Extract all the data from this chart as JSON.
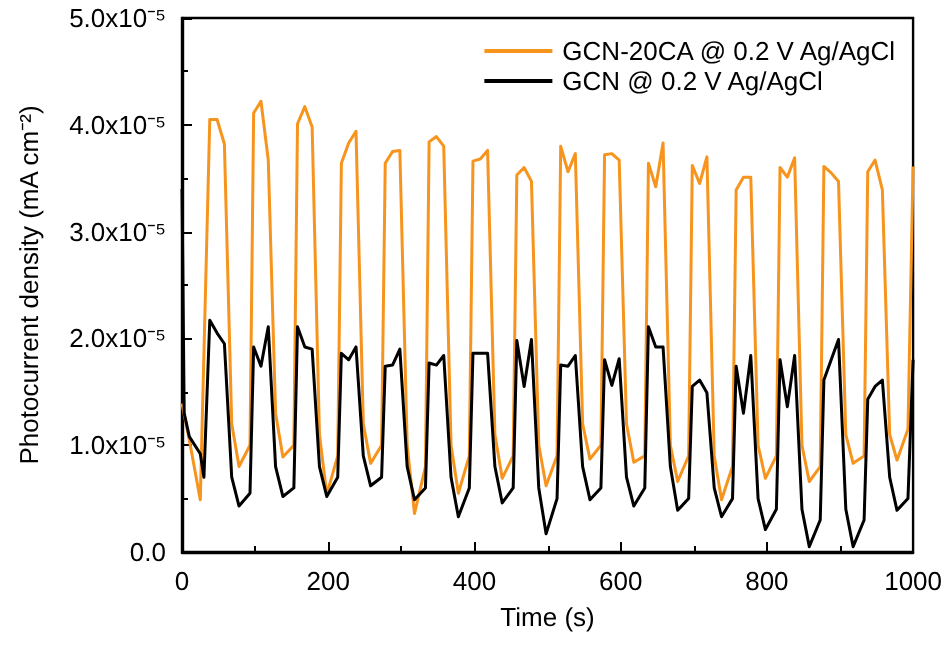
{
  "chart_data": {
    "type": "line",
    "xlabel": "Time (s)",
    "ylabel": "Photocurrent density (mA cm⁻²)",
    "xlim": [
      0,
      1000
    ],
    "xticks": [
      0,
      200,
      400,
      600,
      800,
      1000
    ],
    "ylim": [
      0,
      5e-05
    ],
    "yticks": [
      {
        "value": 0,
        "label": "0.0"
      },
      {
        "value": 1e-05,
        "label": "1.0x10⁻⁵"
      },
      {
        "value": 2e-05,
        "label": "2.0x10⁻⁵"
      },
      {
        "value": 3e-05,
        "label": "3.0x10⁻⁵"
      },
      {
        "value": 4e-05,
        "label": "4.0x10⁻⁵"
      },
      {
        "value": 5e-05,
        "label": "5.0x10⁻⁵"
      }
    ],
    "grid": false,
    "legend": "top right",
    "marker": "none",
    "line_style": "solid",
    "series": [
      {
        "name": "GCN-20CA @ 0.2 V Ag/AgCl",
        "color": "#f7941d",
        "x": [
          0,
          10,
          25,
          38,
          48,
          58,
          68,
          78,
          93,
          98,
          108,
          118,
          128,
          138,
          153,
          158,
          168,
          178,
          188,
          198,
          213,
          218,
          228,
          238,
          248,
          258,
          273,
          278,
          288,
          298,
          308,
          318,
          333,
          338,
          348,
          358,
          368,
          378,
          393,
          398,
          408,
          418,
          428,
          438,
          453,
          458,
          468,
          478,
          488,
          498,
          513,
          518,
          528,
          538,
          548,
          558,
          573,
          578,
          588,
          598,
          608,
          618,
          633,
          638,
          648,
          658,
          668,
          678,
          693,
          698,
          708,
          718,
          728,
          738,
          753,
          758,
          768,
          778,
          788,
          798,
          813,
          818,
          828,
          838,
          848,
          858,
          873,
          878,
          888,
          898,
          908,
          918,
          933,
          938,
          948,
          958,
          968,
          978,
          993,
          1000
        ],
        "values": [
          1.39e-05,
          1.05e-05,
          4.9e-06,
          4.05e-05,
          4.05e-05,
          3.82e-05,
          1.2e-05,
          8e-06,
          1e-05,
          4.11e-05,
          4.22e-05,
          3.67e-05,
          1.3e-05,
          8.9e-06,
          1e-05,
          4.01e-05,
          4.17e-05,
          3.98e-05,
          1.1e-05,
          5.4e-06,
          9e-06,
          3.64e-05,
          3.83e-05,
          3.94e-05,
          1.2e-05,
          8.3e-06,
          1e-05,
          3.64e-05,
          3.75e-05,
          3.76e-05,
          1e-05,
          3.6e-06,
          8e-06,
          3.84e-05,
          3.89e-05,
          3.8e-05,
          1e-05,
          5.5e-06,
          9e-06,
          3.66e-05,
          3.68e-05,
          3.76e-05,
          1.1e-05,
          6.9e-06,
          9e-06,
          3.53e-05,
          3.6e-05,
          3.47e-05,
          1e-05,
          6.2e-06,
          9e-06,
          3.8e-05,
          3.56e-05,
          3.73e-05,
          1.2e-05,
          8.7e-06,
          1e-05,
          3.72e-05,
          3.73e-05,
          3.67e-05,
          1.2e-05,
          8.4e-06,
          9e-06,
          3.64e-05,
          3.42e-05,
          3.83e-05,
          1e-05,
          6.6e-06,
          9e-06,
          3.62e-05,
          3.45e-05,
          3.7e-05,
          9e-06,
          4.9e-06,
          8e-06,
          3.39e-05,
          3.51e-05,
          3.51e-05,
          1e-05,
          6.9e-06,
          9e-06,
          3.6e-05,
          3.51e-05,
          3.69e-05,
          1e-05,
          6.6e-06,
          8e-06,
          3.61e-05,
          3.55e-05,
          3.47e-05,
          1.1e-05,
          8.3e-06,
          9e-06,
          3.56e-05,
          3.67e-05,
          3.39e-05,
          1.1e-05,
          8.6e-06,
          1.15e-05,
          3.61e-05
        ]
      },
      {
        "name": "GCN @ 0.2 V Ag/AgCl",
        "color": "#000000",
        "x": [
          0,
          3,
          10,
          25,
          30,
          38,
          48,
          58,
          68,
          78,
          93,
          98,
          108,
          118,
          128,
          138,
          153,
          158,
          168,
          178,
          188,
          198,
          213,
          218,
          228,
          238,
          248,
          258,
          273,
          278,
          288,
          298,
          308,
          318,
          333,
          338,
          348,
          358,
          368,
          378,
          393,
          398,
          408,
          418,
          428,
          438,
          453,
          458,
          468,
          478,
          488,
          498,
          513,
          518,
          528,
          538,
          548,
          558,
          573,
          578,
          588,
          598,
          608,
          618,
          633,
          638,
          648,
          658,
          668,
          678,
          693,
          698,
          708,
          718,
          728,
          738,
          753,
          758,
          768,
          778,
          788,
          798,
          813,
          818,
          828,
          838,
          848,
          858,
          873,
          878,
          888,
          898,
          908,
          918,
          933,
          938,
          948,
          958,
          968,
          978,
          993,
          1000
        ],
        "values": [
          3.4e-05,
          1.3e-05,
          1.08e-05,
          9.2e-06,
          7e-06,
          2.17e-05,
          2.05e-05,
          1.95e-05,
          7e-06,
          4.3e-06,
          5.5e-06,
          1.92e-05,
          1.74e-05,
          2.11e-05,
          8e-06,
          5.2e-06,
          6e-06,
          2.11e-05,
          1.92e-05,
          1.9e-05,
          8e-06,
          5.2e-06,
          7e-06,
          1.86e-05,
          1.8e-05,
          1.92e-05,
          9e-06,
          6.2e-06,
          7e-06,
          1.74e-05,
          1.75e-05,
          1.9e-05,
          8e-06,
          4.9e-06,
          6e-06,
          1.77e-05,
          1.75e-05,
          1.84e-05,
          7e-06,
          3.3e-06,
          6e-06,
          1.86e-05,
          1.86e-05,
          1.86e-05,
          8e-06,
          4.6e-06,
          6e-06,
          1.98e-05,
          1.55e-05,
          1.99e-05,
          6e-06,
          1.7e-06,
          5e-06,
          1.75e-05,
          1.74e-05,
          1.84e-05,
          8e-06,
          4.9e-06,
          6e-06,
          1.8e-05,
          1.56e-05,
          1.81e-05,
          7e-06,
          4.3e-06,
          6e-06,
          2.11e-05,
          1.92e-05,
          1.92e-05,
          8e-06,
          3.9e-06,
          5e-06,
          1.55e-05,
          1.61e-05,
          1.49e-05,
          6e-06,
          3.3e-06,
          5e-06,
          1.74e-05,
          1.3e-05,
          1.84e-05,
          5e-06,
          2.1e-06,
          4e-06,
          1.8e-05,
          1.36e-05,
          1.84e-05,
          4e-06,
          5e-07,
          3e-06,
          1.61e-05,
          1.8e-05,
          1.99e-05,
          4e-06,
          5e-07,
          3e-06,
          1.43e-05,
          1.55e-05,
          1.61e-05,
          7e-06,
          3.9e-06,
          5e-06,
          1.8e-05
        ]
      }
    ]
  }
}
